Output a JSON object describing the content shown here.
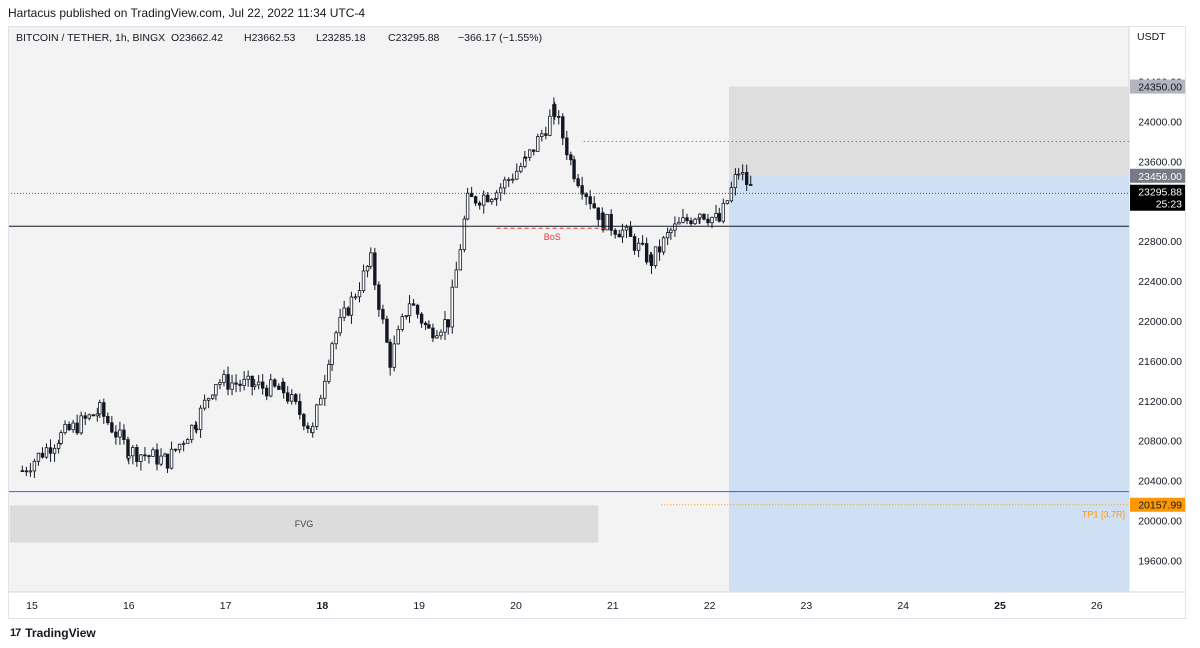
{
  "header": {
    "published_line": "Hartacus published on TradingView.com, Jul 22, 2022 11:34 UTC-4"
  },
  "footer": {
    "logo_mark": "17",
    "logo_text": "TradingView"
  },
  "colors": {
    "up_candle": "#ffffff",
    "down_candle": "#131722",
    "grid_bg": "#f3f3f3",
    "stop_zone": "#dcdcdc",
    "target_zone": "#cfe0f5",
    "support_line": "#2962ff",
    "tp_color": "#ff9800",
    "bos_color": "#e53935",
    "last_price_bg": "#000000"
  },
  "chart_data": {
    "type": "candlestick",
    "title": "BITCOIN / TETHER, 1h, BINGX",
    "ohlc_readout": {
      "open": "O23662.42",
      "high": "H23662.53",
      "low": "L23285.18",
      "close": "C23295.88",
      "change": "−366.17 (−1.55%)"
    },
    "currency": "USDT",
    "y_ticks": [
      "24400.00",
      "24000.00",
      "23600.00",
      "23200.00",
      "22800.00",
      "22400.00",
      "22000.00",
      "21600.00",
      "21200.00",
      "20800.00",
      "20400.00",
      "20000.00",
      "19600.00"
    ],
    "ylim": [
      19150,
      24700
    ],
    "x_ticks": [
      "15",
      "16",
      "17",
      "18",
      "19",
      "20",
      "21",
      "22",
      "23",
      "24",
      "25",
      "26"
    ],
    "x_ticks_bold": [
      "18",
      "25"
    ],
    "series_close_approx": [
      {
        "day": 14.9,
        "price": 20500
      },
      {
        "day": 15.3,
        "price": 20850
      },
      {
        "day": 15.7,
        "price": 21100
      },
      {
        "day": 16.0,
        "price": 20700
      },
      {
        "day": 16.4,
        "price": 20600
      },
      {
        "day": 16.7,
        "price": 21000
      },
      {
        "day": 16.9,
        "price": 21400
      },
      {
        "day": 17.3,
        "price": 21350
      },
      {
        "day": 17.6,
        "price": 21300
      },
      {
        "day": 17.9,
        "price": 20900
      },
      {
        "day": 18.1,
        "price": 21800
      },
      {
        "day": 18.3,
        "price": 22200
      },
      {
        "day": 18.5,
        "price": 22600
      },
      {
        "day": 18.7,
        "price": 21600
      },
      {
        "day": 18.9,
        "price": 22200
      },
      {
        "day": 19.1,
        "price": 21900
      },
      {
        "day": 19.3,
        "price": 22000
      },
      {
        "day": 19.5,
        "price": 23200
      },
      {
        "day": 19.8,
        "price": 23300
      },
      {
        "day": 20.1,
        "price": 23600
      },
      {
        "day": 20.4,
        "price": 24100
      },
      {
        "day": 20.6,
        "price": 23500
      },
      {
        "day": 20.9,
        "price": 23000
      },
      {
        "day": 21.1,
        "price": 22900
      },
      {
        "day": 21.4,
        "price": 22600
      },
      {
        "day": 21.6,
        "price": 22900
      },
      {
        "day": 21.9,
        "price": 23100
      },
      {
        "day": 22.1,
        "price": 23000
      },
      {
        "day": 22.3,
        "price": 23500
      },
      {
        "day": 22.45,
        "price": 23296
      }
    ],
    "levels": {
      "stop_top": 24350.0,
      "entry": 23456.0,
      "last_price": 23295.88,
      "countdown": "25:23",
      "horizontal_black": 22950,
      "blue_dotted": 23800,
      "gray_dotted": 23280,
      "blue_support": 20290,
      "tp1_price": 20157.99,
      "target_bottom": 19200
    },
    "price_labels": {
      "stop": "24350.00",
      "entry": "23456.00",
      "last": "23295.88",
      "tp1": "20157.99",
      "countdown": "25:23"
    },
    "annotations": {
      "bos": "BoS",
      "fvg": "FVG",
      "tp1": "TP1 [3.7R]"
    },
    "zones": {
      "fvg": {
        "from_day": 14.77,
        "to_day": 20.85,
        "low": 19780,
        "high": 20150
      },
      "bos_line": {
        "from_day": 19.8,
        "to_day": 20.95,
        "price": 22930
      },
      "position_from_day": 22.2,
      "tp_line_from_day": 21.5
    },
    "grid": false
  }
}
